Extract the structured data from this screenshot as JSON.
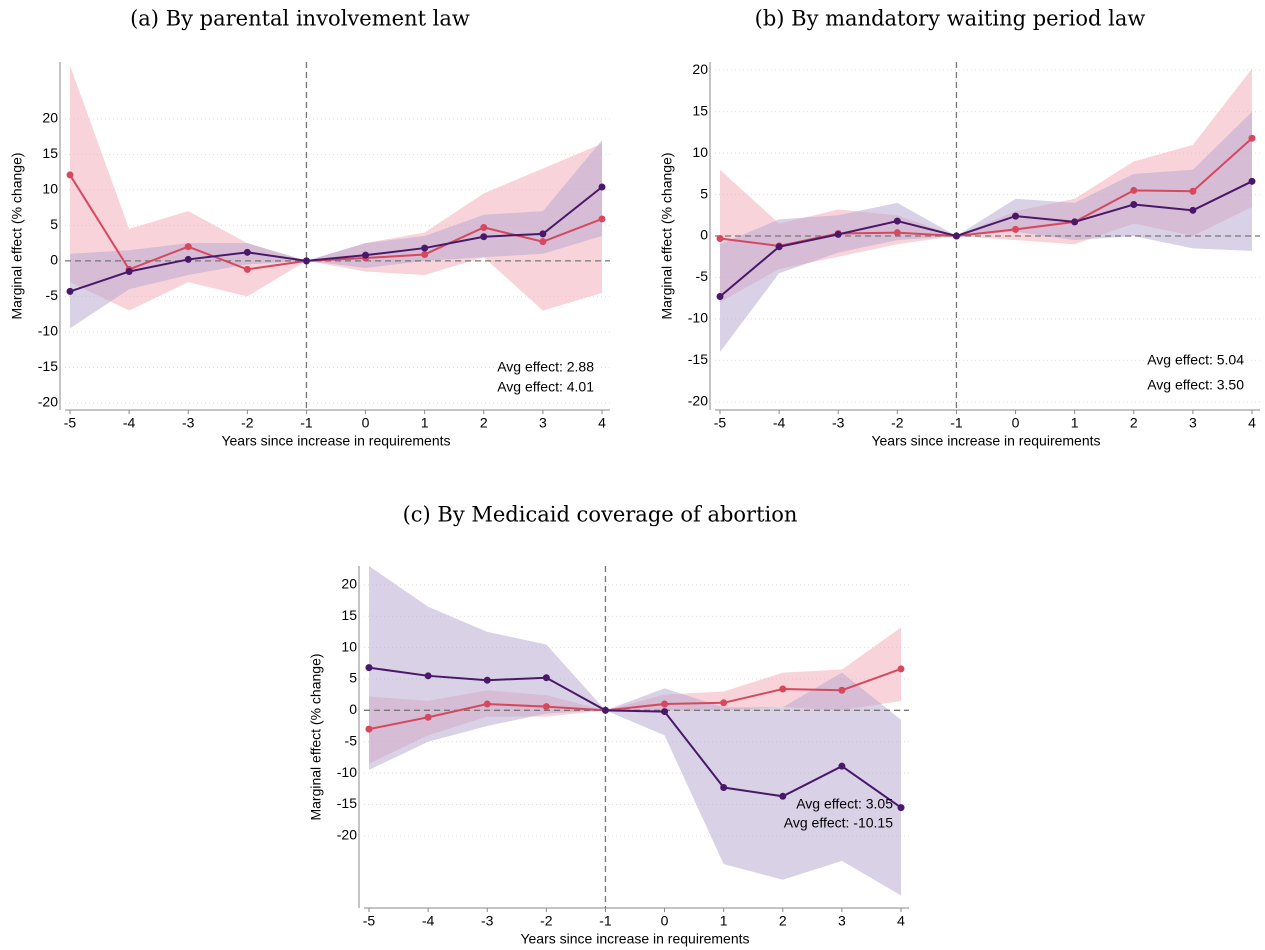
{
  "chart_data": [
    {
      "type": "line",
      "title": "(a) By parental involvement law",
      "xlabel": "Years since increase in requirements",
      "ylabel": "Marginal effect (% change)",
      "x": [
        -5,
        -4,
        -3,
        -2,
        -1,
        0,
        1,
        2,
        3,
        4
      ],
      "xlim": [
        -5,
        4
      ],
      "xticks": [
        -5,
        -4,
        -3,
        -2,
        -1,
        0,
        1,
        2,
        3,
        4
      ],
      "ylim": [
        -21,
        28
      ],
      "yticks": [
        -20,
        -15,
        -10,
        -5,
        0,
        5,
        10,
        15,
        20
      ],
      "grid": true,
      "vline": -1,
      "series": [
        {
          "color": "#d6485e",
          "band_color": "#f2aab5",
          "values": [
            12.1,
            -1.2,
            2.0,
            -1.2,
            0,
            0.4,
            0.9,
            4.7,
            2.7,
            5.9
          ],
          "lower": [
            -3,
            -7,
            -3,
            -5,
            0,
            -1.5,
            -2,
            0.5,
            -7,
            -4.5
          ],
          "upper": [
            27.5,
            4.5,
            7,
            2.5,
            0,
            2.5,
            4,
            9.5,
            13,
            16.5
          ]
        },
        {
          "color": "#4a1868",
          "band_color": "#b3a6d0",
          "values": [
            -4.3,
            -1.5,
            0.2,
            1.2,
            0,
            0.8,
            1.8,
            3.4,
            3.8,
            10.4
          ],
          "lower": [
            -9.5,
            -4,
            -2,
            -0.5,
            0,
            -1,
            0,
            0.5,
            1,
            3.5
          ],
          "upper": [
            1,
            1.5,
            2.5,
            2.5,
            0,
            2.5,
            3.5,
            6.5,
            7,
            17
          ]
        }
      ],
      "annotations": [
        {
          "text": "Avg effect: 2.88",
          "color": "#ff0000"
        },
        {
          "text": "Avg effect: 4.01",
          "color": "#800080"
        }
      ]
    },
    {
      "type": "line",
      "title": "(b) By mandatory waiting period law",
      "xlabel": "Years since increase in requirements",
      "ylabel": "Marginal effect (% change)",
      "x": [
        -5,
        -4,
        -3,
        -2,
        -1,
        0,
        1,
        2,
        3,
        4
      ],
      "xlim": [
        -5,
        4
      ],
      "xticks": [
        -5,
        -4,
        -3,
        -2,
        -1,
        0,
        1,
        2,
        3,
        4
      ],
      "ylim": [
        -21,
        21
      ],
      "yticks": [
        -20,
        -15,
        -10,
        -5,
        0,
        5,
        10,
        15,
        20
      ],
      "grid": true,
      "vline": -1,
      "series": [
        {
          "color": "#d6485e",
          "band_color": "#f2aab5",
          "values": [
            -0.3,
            -1.2,
            0.3,
            0.4,
            0,
            0.8,
            1.7,
            5.5,
            5.4,
            11.8
          ],
          "lower": [
            -8,
            -4,
            -2.5,
            -1,
            0,
            -0.5,
            -1,
            1.5,
            0,
            3.5
          ],
          "upper": [
            8,
            1.5,
            3.2,
            2.5,
            0,
            3,
            4.5,
            9,
            11,
            20.2
          ]
        },
        {
          "color": "#4a1868",
          "band_color": "#b3a6d0",
          "values": [
            -7.3,
            -1.3,
            0.2,
            1.8,
            0,
            2.4,
            1.7,
            3.8,
            3.1,
            6.6
          ],
          "lower": [
            -14,
            -4.5,
            -2,
            -0.5,
            0,
            0.5,
            -0.5,
            0,
            -1.5,
            -1.8
          ],
          "upper": [
            -1,
            2,
            2.5,
            4,
            0,
            4.5,
            4,
            7.5,
            8,
            15
          ]
        }
      ],
      "annotations": [
        {
          "text": "Avg effect: 5.04",
          "color": "#ff0000"
        },
        {
          "text": "Avg effect: 3.50",
          "color": "#800080"
        }
      ]
    },
    {
      "type": "line",
      "title": "(c) By Medicaid coverage of abortion",
      "xlabel": "Years since increase in requirements",
      "ylabel": "Marginal effect (% change)",
      "x": [
        -5,
        -4,
        -3,
        -2,
        -1,
        0,
        1,
        2,
        3,
        4
      ],
      "xlim": [
        -5,
        4
      ],
      "xticks": [
        -5,
        -4,
        -3,
        -2,
        -1,
        0,
        1,
        2,
        3,
        4
      ],
      "ylim": [
        -31.5,
        23
      ],
      "yticks": [
        -20,
        -15,
        -10,
        -5,
        0,
        5,
        10,
        15,
        20
      ],
      "grid": true,
      "vline": -1,
      "series": [
        {
          "color": "#d6485e",
          "band_color": "#f2aab5",
          "values": [
            -3.0,
            -1.1,
            1.0,
            0.6,
            0,
            1.0,
            1.2,
            3.4,
            3.2,
            6.6
          ],
          "lower": [
            -8.5,
            -4,
            -1,
            -1,
            0,
            0,
            0,
            0.5,
            0,
            1.5
          ],
          "upper": [
            2.2,
            1.5,
            3.2,
            2.4,
            0,
            2.5,
            3,
            6,
            6.5,
            13.2
          ]
        },
        {
          "color": "#4a1868",
          "band_color": "#b3a6d0",
          "values": [
            6.8,
            5.5,
            4.8,
            5.2,
            0,
            -0.2,
            -12.3,
            -13.7,
            -8.9,
            -15.5
          ],
          "lower": [
            -9.5,
            -5,
            -2.5,
            -0.5,
            0,
            -4,
            -24.5,
            -27,
            -24,
            -29.5
          ],
          "upper": [
            23,
            16.5,
            12.5,
            10.5,
            0,
            3.5,
            0.5,
            0.5,
            6,
            -1.5
          ]
        }
      ],
      "annotations": [
        {
          "text": "Avg effect: 3.05",
          "color": "#ff0000"
        },
        {
          "text": "Avg effect: -10.15",
          "color": "#800080"
        }
      ]
    }
  ]
}
